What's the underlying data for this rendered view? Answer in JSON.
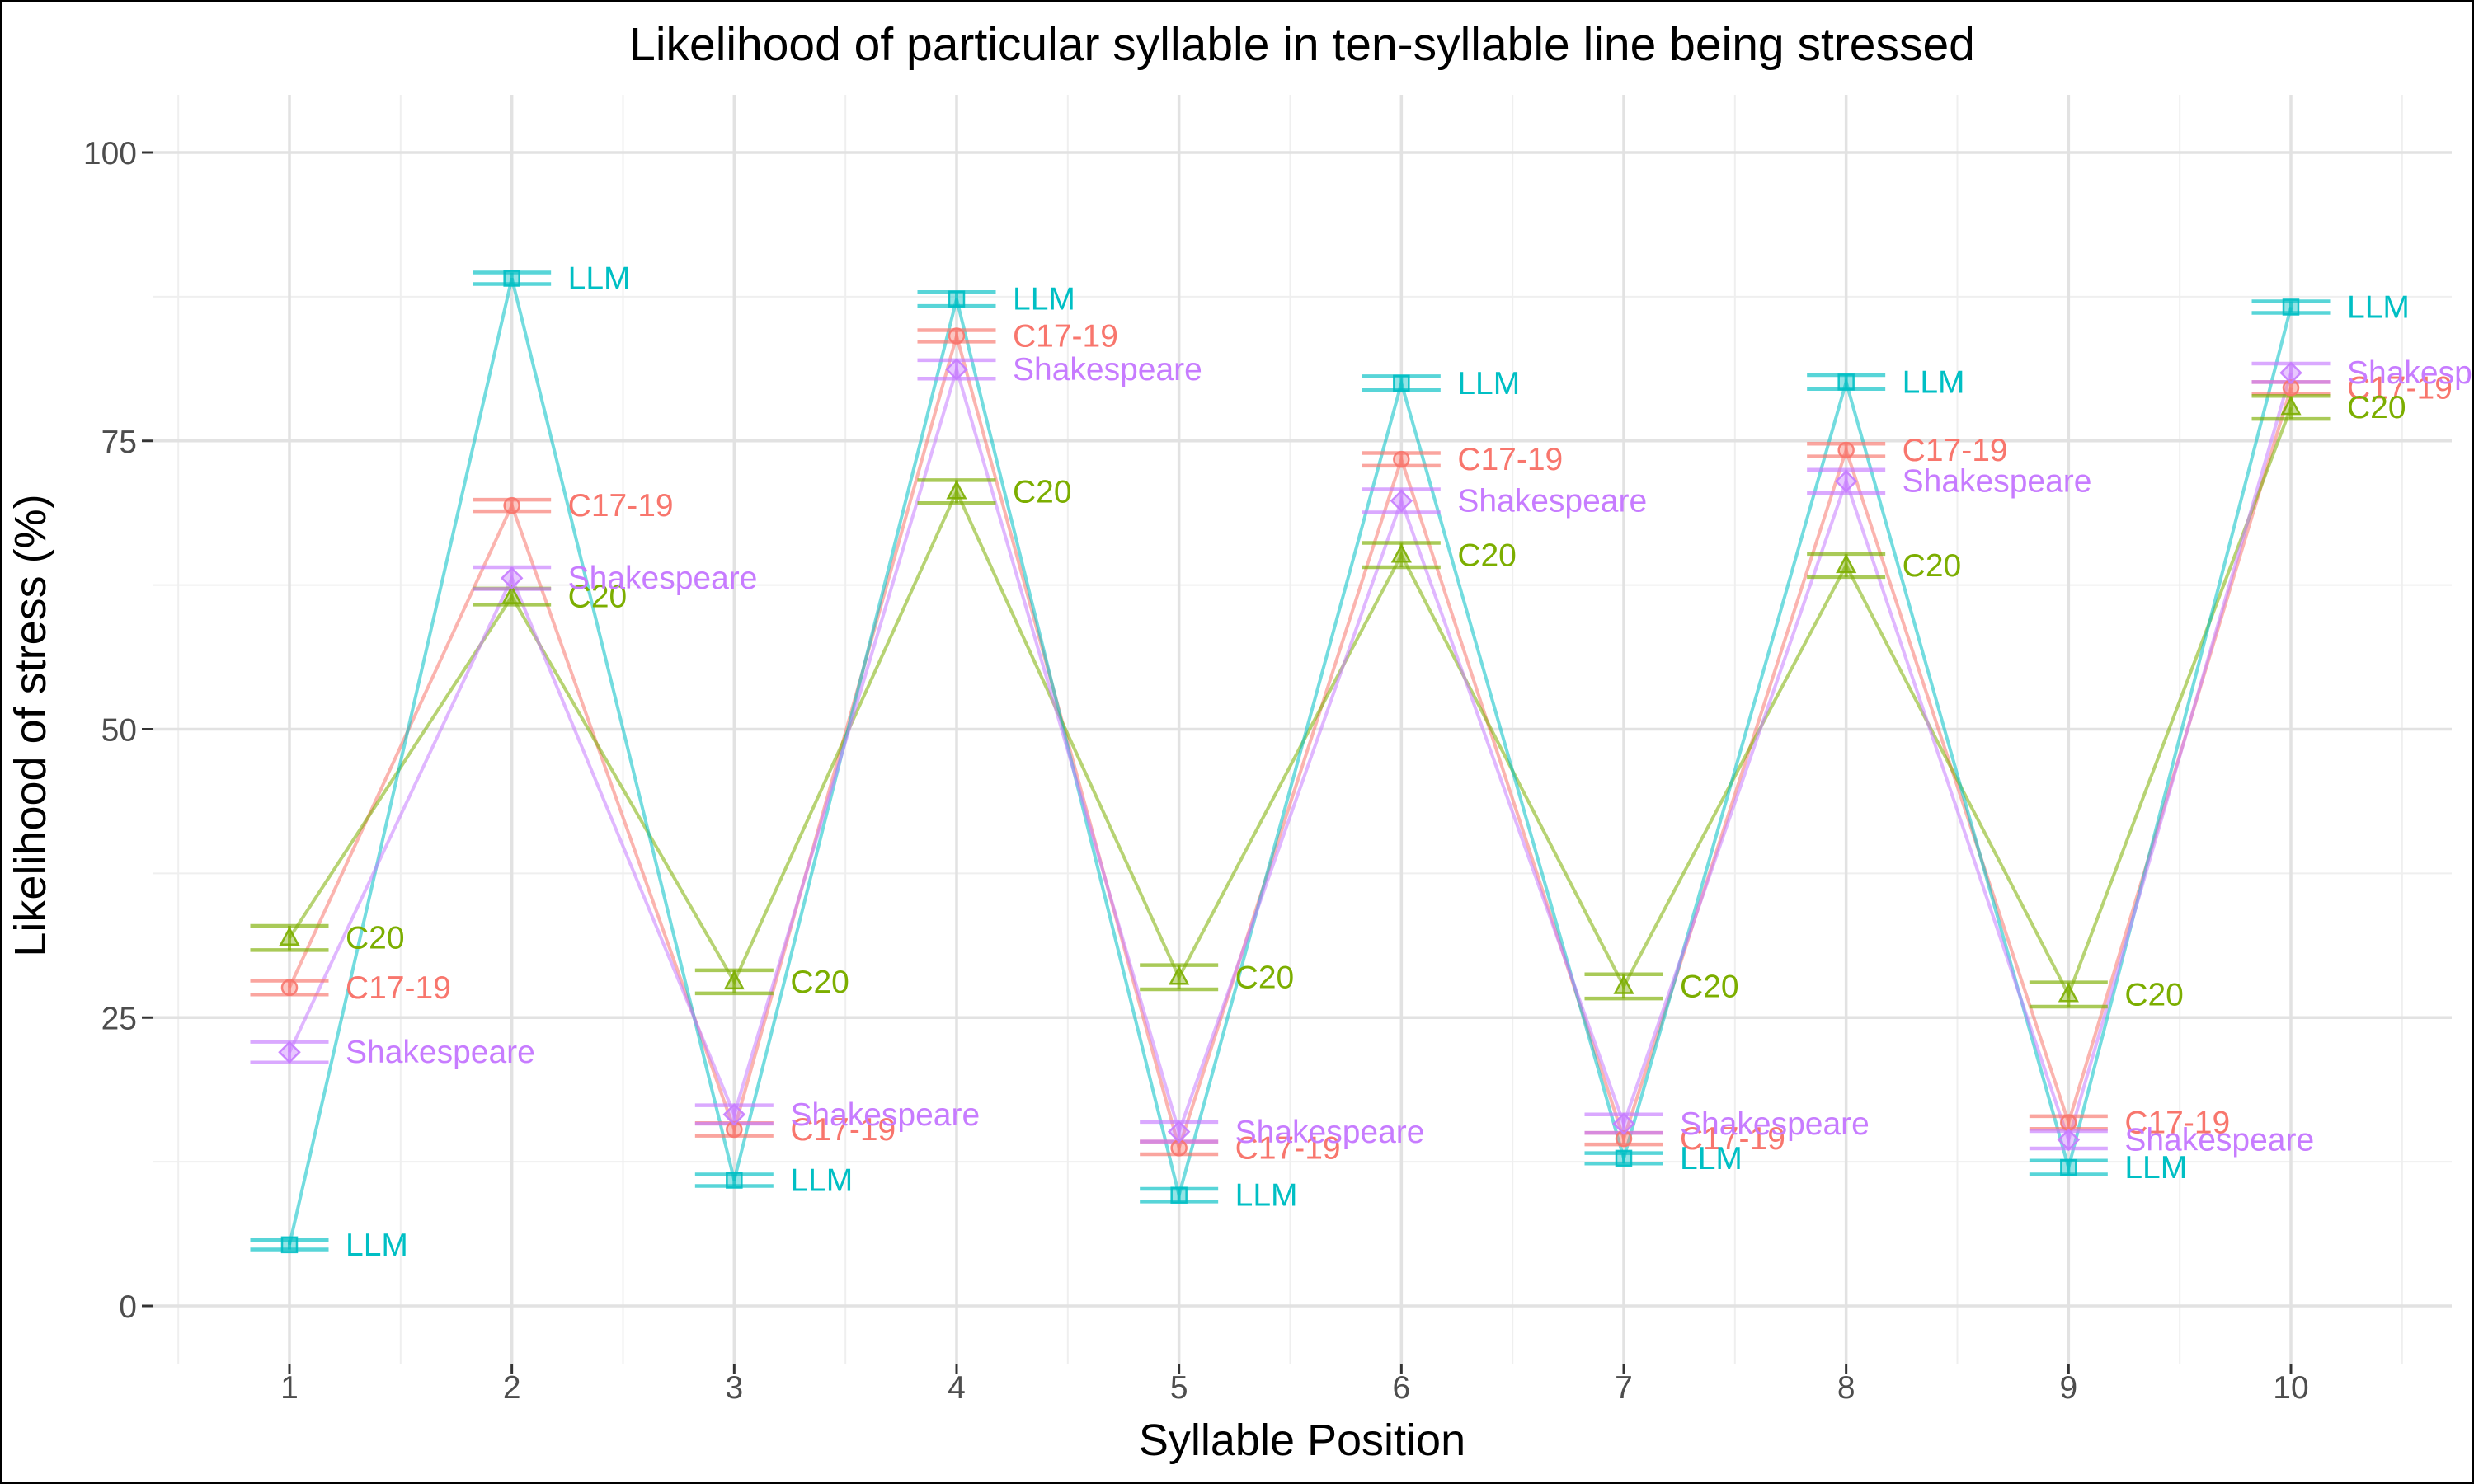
{
  "chart_data": {
    "type": "line",
    "title": "Likelihood of particular syllable in ten-syllable line being stressed",
    "xlabel": "Syllable Position",
    "ylabel": "Likelihood of stress (%)",
    "x": [
      1,
      2,
      3,
      4,
      5,
      6,
      7,
      8,
      9,
      10
    ],
    "xticks": [
      "1",
      "2",
      "3",
      "4",
      "5",
      "6",
      "7",
      "8",
      "9",
      "10"
    ],
    "yticks": [
      "0",
      "25",
      "50",
      "75",
      "100"
    ],
    "ylim": [
      0,
      100
    ],
    "grid": "major and minor, light gray on white",
    "legend": "inline point labels",
    "series": [
      {
        "name": "C17-19",
        "color": "#F8766D",
        "marker": "circle",
        "values": [
          27.6,
          69.4,
          15.3,
          84.1,
          13.7,
          73.4,
          14.5,
          74.2,
          15.9,
          79.6
        ],
        "errors": [
          0.6,
          0.5,
          0.55,
          0.5,
          0.55,
          0.55,
          0.5,
          0.55,
          0.55,
          0.5
        ]
      },
      {
        "name": "C20",
        "color": "#7CAE00",
        "marker": "triangle",
        "values": [
          31.9,
          61.5,
          28.1,
          70.6,
          28.5,
          65.1,
          27.7,
          64.2,
          27.0,
          77.9
        ],
        "errors": [
          1.05,
          0.7,
          1.0,
          1.0,
          1.05,
          1.05,
          1.05,
          1.0,
          1.05,
          1.0
        ]
      },
      {
        "name": "LLM",
        "color": "#00BFC4",
        "marker": "square",
        "values": [
          5.3,
          89.1,
          10.9,
          87.3,
          9.6,
          80.0,
          12.8,
          80.1,
          12.0,
          86.6
        ],
        "errors": [
          0.4,
          0.5,
          0.5,
          0.6,
          0.55,
          0.6,
          0.45,
          0.6,
          0.6,
          0.5
        ]
      },
      {
        "name": "Shakespeare",
        "color": "#C77CFF",
        "marker": "diamond",
        "values": [
          22.0,
          63.1,
          16.6,
          81.2,
          15.1,
          69.8,
          15.8,
          71.5,
          14.4,
          80.9
        ],
        "errors": [
          0.9,
          0.95,
          0.8,
          0.8,
          0.85,
          1.0,
          0.8,
          1.0,
          0.75,
          0.8
        ]
      }
    ]
  }
}
